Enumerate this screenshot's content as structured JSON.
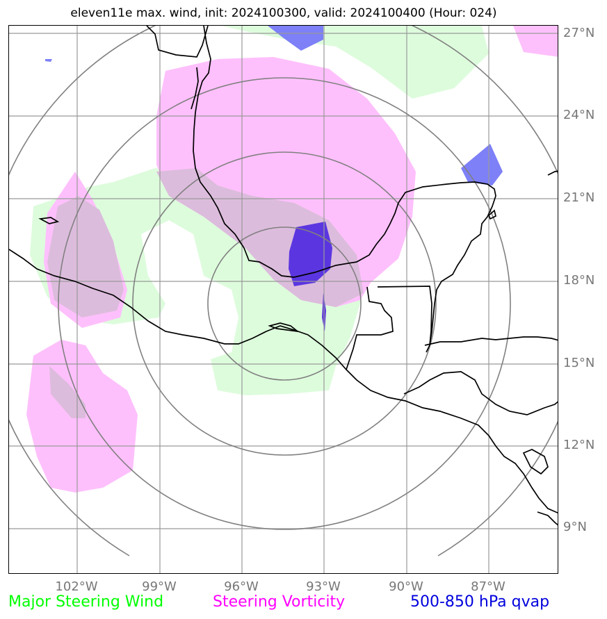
{
  "title": "eleven11e max. wind, init: 2024100300, valid: 2024100400 (Hour: 024)",
  "lat_labels": [
    "27°N",
    "24°N",
    "21°N",
    "18°N",
    "15°N",
    "12°N",
    "9°N"
  ],
  "lon_labels": [
    "102°W",
    "99°W",
    "96°W",
    "93°W",
    "90°W",
    "87°W"
  ],
  "legend": [
    {
      "label": "Major Steering Wind",
      "color": "#00ff00"
    },
    {
      "label": "Steering Vorticity",
      "color": "#ff00ff"
    },
    {
      "label": "500-850 hPa qvap",
      "color": "#0000dd"
    }
  ],
  "colors": {
    "wind_fill": "#ddfcdc",
    "vorticity_fill": "#fec0fc",
    "overlap_fill": "#dcbcdc",
    "qvap_light": "#7d80f7",
    "qvap_dark": "#5b36e0",
    "coast": "#000000",
    "grid": "#999999",
    "range_rings": "#808080"
  }
}
